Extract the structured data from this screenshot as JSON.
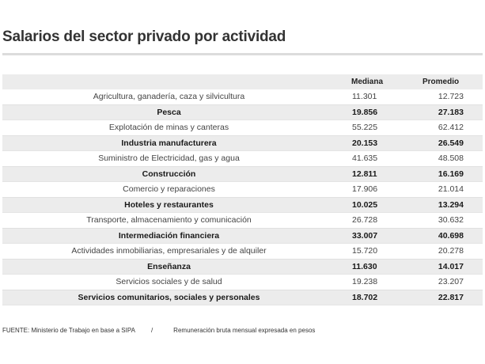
{
  "title": "Salarios del sector privado por actividad",
  "table": {
    "headers": {
      "activity": "",
      "mediana": "Mediana",
      "promedio": "Promedio"
    },
    "rows": [
      {
        "activity": "Agricultura, ganadería, caza y silvicultura",
        "mediana": "11.301",
        "promedio": "12.723"
      },
      {
        "activity": "Pesca",
        "mediana": "19.856",
        "promedio": "27.183"
      },
      {
        "activity": "Explotación de minas y canteras",
        "mediana": "55.225",
        "promedio": "62.412"
      },
      {
        "activity": "Industria manufacturera",
        "mediana": "20.153",
        "promedio": "26.549"
      },
      {
        "activity": "Suministro de Electricidad, gas y agua",
        "mediana": "41.635",
        "promedio": "48.508"
      },
      {
        "activity": "Construcción",
        "mediana": "12.811",
        "promedio": "16.169"
      },
      {
        "activity": "Comercio y reparaciones",
        "mediana": "17.906",
        "promedio": "21.014"
      },
      {
        "activity": "Hoteles y restaurantes",
        "mediana": "10.025",
        "promedio": "13.294"
      },
      {
        "activity": "Transporte, almacenamiento y comunicación",
        "mediana": "26.728",
        "promedio": "30.632"
      },
      {
        "activity": "Intermediación financiera",
        "mediana": "33.007",
        "promedio": "40.698"
      },
      {
        "activity": "Actividades inmobiliarias, empresariales y de alquiler",
        "mediana": "15.720",
        "promedio": "20.278"
      },
      {
        "activity": "Enseñanza",
        "mediana": "11.630",
        "promedio": "14.017"
      },
      {
        "activity": "Servicios sociales y de salud",
        "mediana": "19.238",
        "promedio": "23.207"
      },
      {
        "activity": "Servicios comunitarios, sociales y personales",
        "mediana": "18.702",
        "promedio": "22.817"
      }
    ]
  },
  "footer": {
    "source": "FUENTE: Ministerio de Trabajo en base a SIPA",
    "separator": "/",
    "note": "Remuneración bruta mensual expresada en pesos"
  }
}
